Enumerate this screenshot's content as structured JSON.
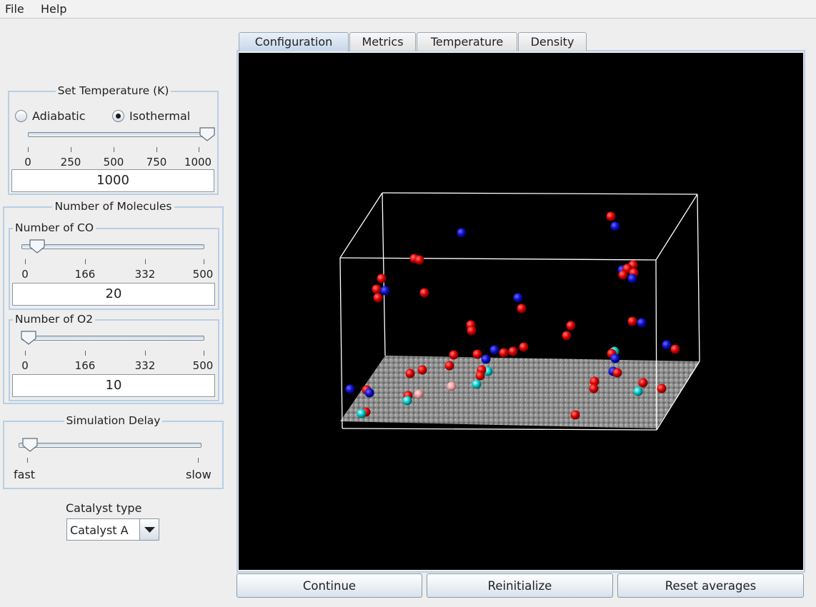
{
  "menu": {
    "file": "File",
    "help": "Help"
  },
  "temperature": {
    "title": "Set Temperature (K)",
    "mode_adiabatic": "Adiabatic",
    "mode_isothermal": "Isothermal",
    "selected_mode": "Isothermal",
    "ticks": [
      "0",
      "250",
      "500",
      "750",
      "1000"
    ],
    "min": 0,
    "max": 1000,
    "value": 1000,
    "field": "1000"
  },
  "molecules": {
    "title": "Number of Molecules",
    "co": {
      "title": "Number of CO",
      "ticks": [
        "0",
        "166",
        "332",
        "500"
      ],
      "min": 0,
      "max": 500,
      "value": 20,
      "field": "20"
    },
    "o2": {
      "title": "Number of O2",
      "ticks": [
        "0",
        "166",
        "332",
        "500"
      ],
      "min": 0,
      "max": 500,
      "value": 10,
      "field": "10"
    }
  },
  "delay": {
    "title": "Simulation Delay",
    "fast": "fast",
    "slow": "slow",
    "fraction": 0.02
  },
  "catalyst": {
    "label": "Catalyst type",
    "value": "Catalyst A"
  },
  "tabs": {
    "configuration": "Configuration",
    "metrics": "Metrics",
    "temperature": "Temperature",
    "density": "Density"
  },
  "buttons": {
    "continue": "Continue",
    "reinitialize": "Reinitialize",
    "reset": "Reset averages"
  },
  "colors": {
    "oxygen": "#e60000",
    "carbon": "#0000c8",
    "surface_bound": "#00cccc",
    "product": "#f0a0a0",
    "surface": "#8a8a8a",
    "box": "#ffffff"
  }
}
